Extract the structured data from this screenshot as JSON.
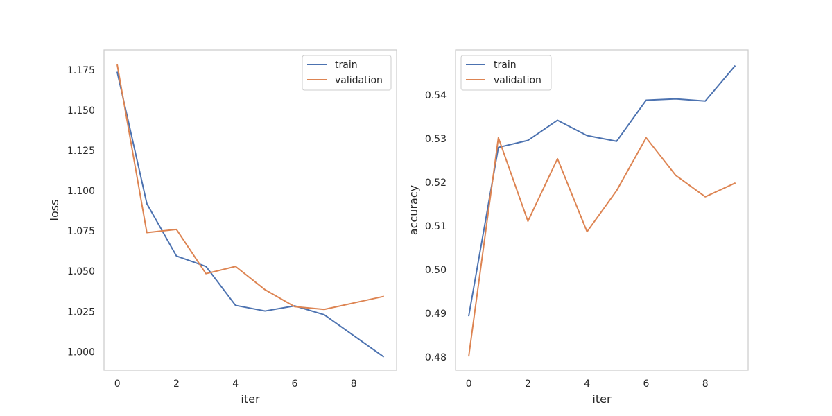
{
  "chart_data": [
    {
      "type": "line",
      "xlabel": "iter",
      "ylabel": "loss",
      "x": [
        0,
        1,
        2,
        3,
        4,
        5,
        6,
        7,
        8,
        9
      ],
      "xticks": [
        "0",
        "2",
        "4",
        "6",
        "8"
      ],
      "yticks": [
        "1.000",
        "1.025",
        "1.050",
        "1.075",
        "1.100",
        "1.125",
        "1.150",
        "1.175"
      ],
      "xlim": [
        -0.45,
        9.45
      ],
      "ylim": [
        0.9885,
        1.1875
      ],
      "grid": false,
      "legend_position": "upper right",
      "series": [
        {
          "name": "train",
          "color": "#4c72b0",
          "values": [
            1.1735,
            1.092,
            1.0595,
            1.053,
            1.0288,
            1.0253,
            1.0285,
            1.023,
            1.01,
            0.997
          ]
        },
        {
          "name": "validation",
          "color": "#dd8452",
          "values": [
            1.178,
            1.074,
            1.076,
            1.0485,
            1.053,
            1.0385,
            1.028,
            1.0263,
            1.0303,
            1.0343
          ]
        }
      ]
    },
    {
      "type": "line",
      "xlabel": "iter",
      "ylabel": "accuracy",
      "x": [
        0,
        1,
        2,
        3,
        4,
        5,
        6,
        7,
        8,
        9
      ],
      "xticks": [
        "0",
        "2",
        "4",
        "6",
        "8"
      ],
      "yticks": [
        "0.48",
        "0.49",
        "0.50",
        "0.51",
        "0.52",
        "0.53",
        "0.54"
      ],
      "xlim": [
        -0.45,
        9.45
      ],
      "ylim": [
        0.477,
        0.5503
      ],
      "grid": false,
      "legend_position": "upper left",
      "series": [
        {
          "name": "train",
          "color": "#4c72b0",
          "values": [
            0.4895,
            0.528,
            0.5296,
            0.5342,
            0.5307,
            0.5294,
            0.5388,
            0.5391,
            0.5386,
            0.5466
          ]
        },
        {
          "name": "validation",
          "color": "#dd8452",
          "values": [
            0.4803,
            0.5302,
            0.5111,
            0.5254,
            0.5087,
            0.5181,
            0.5302,
            0.5216,
            0.5167,
            0.5198
          ]
        }
      ]
    }
  ]
}
